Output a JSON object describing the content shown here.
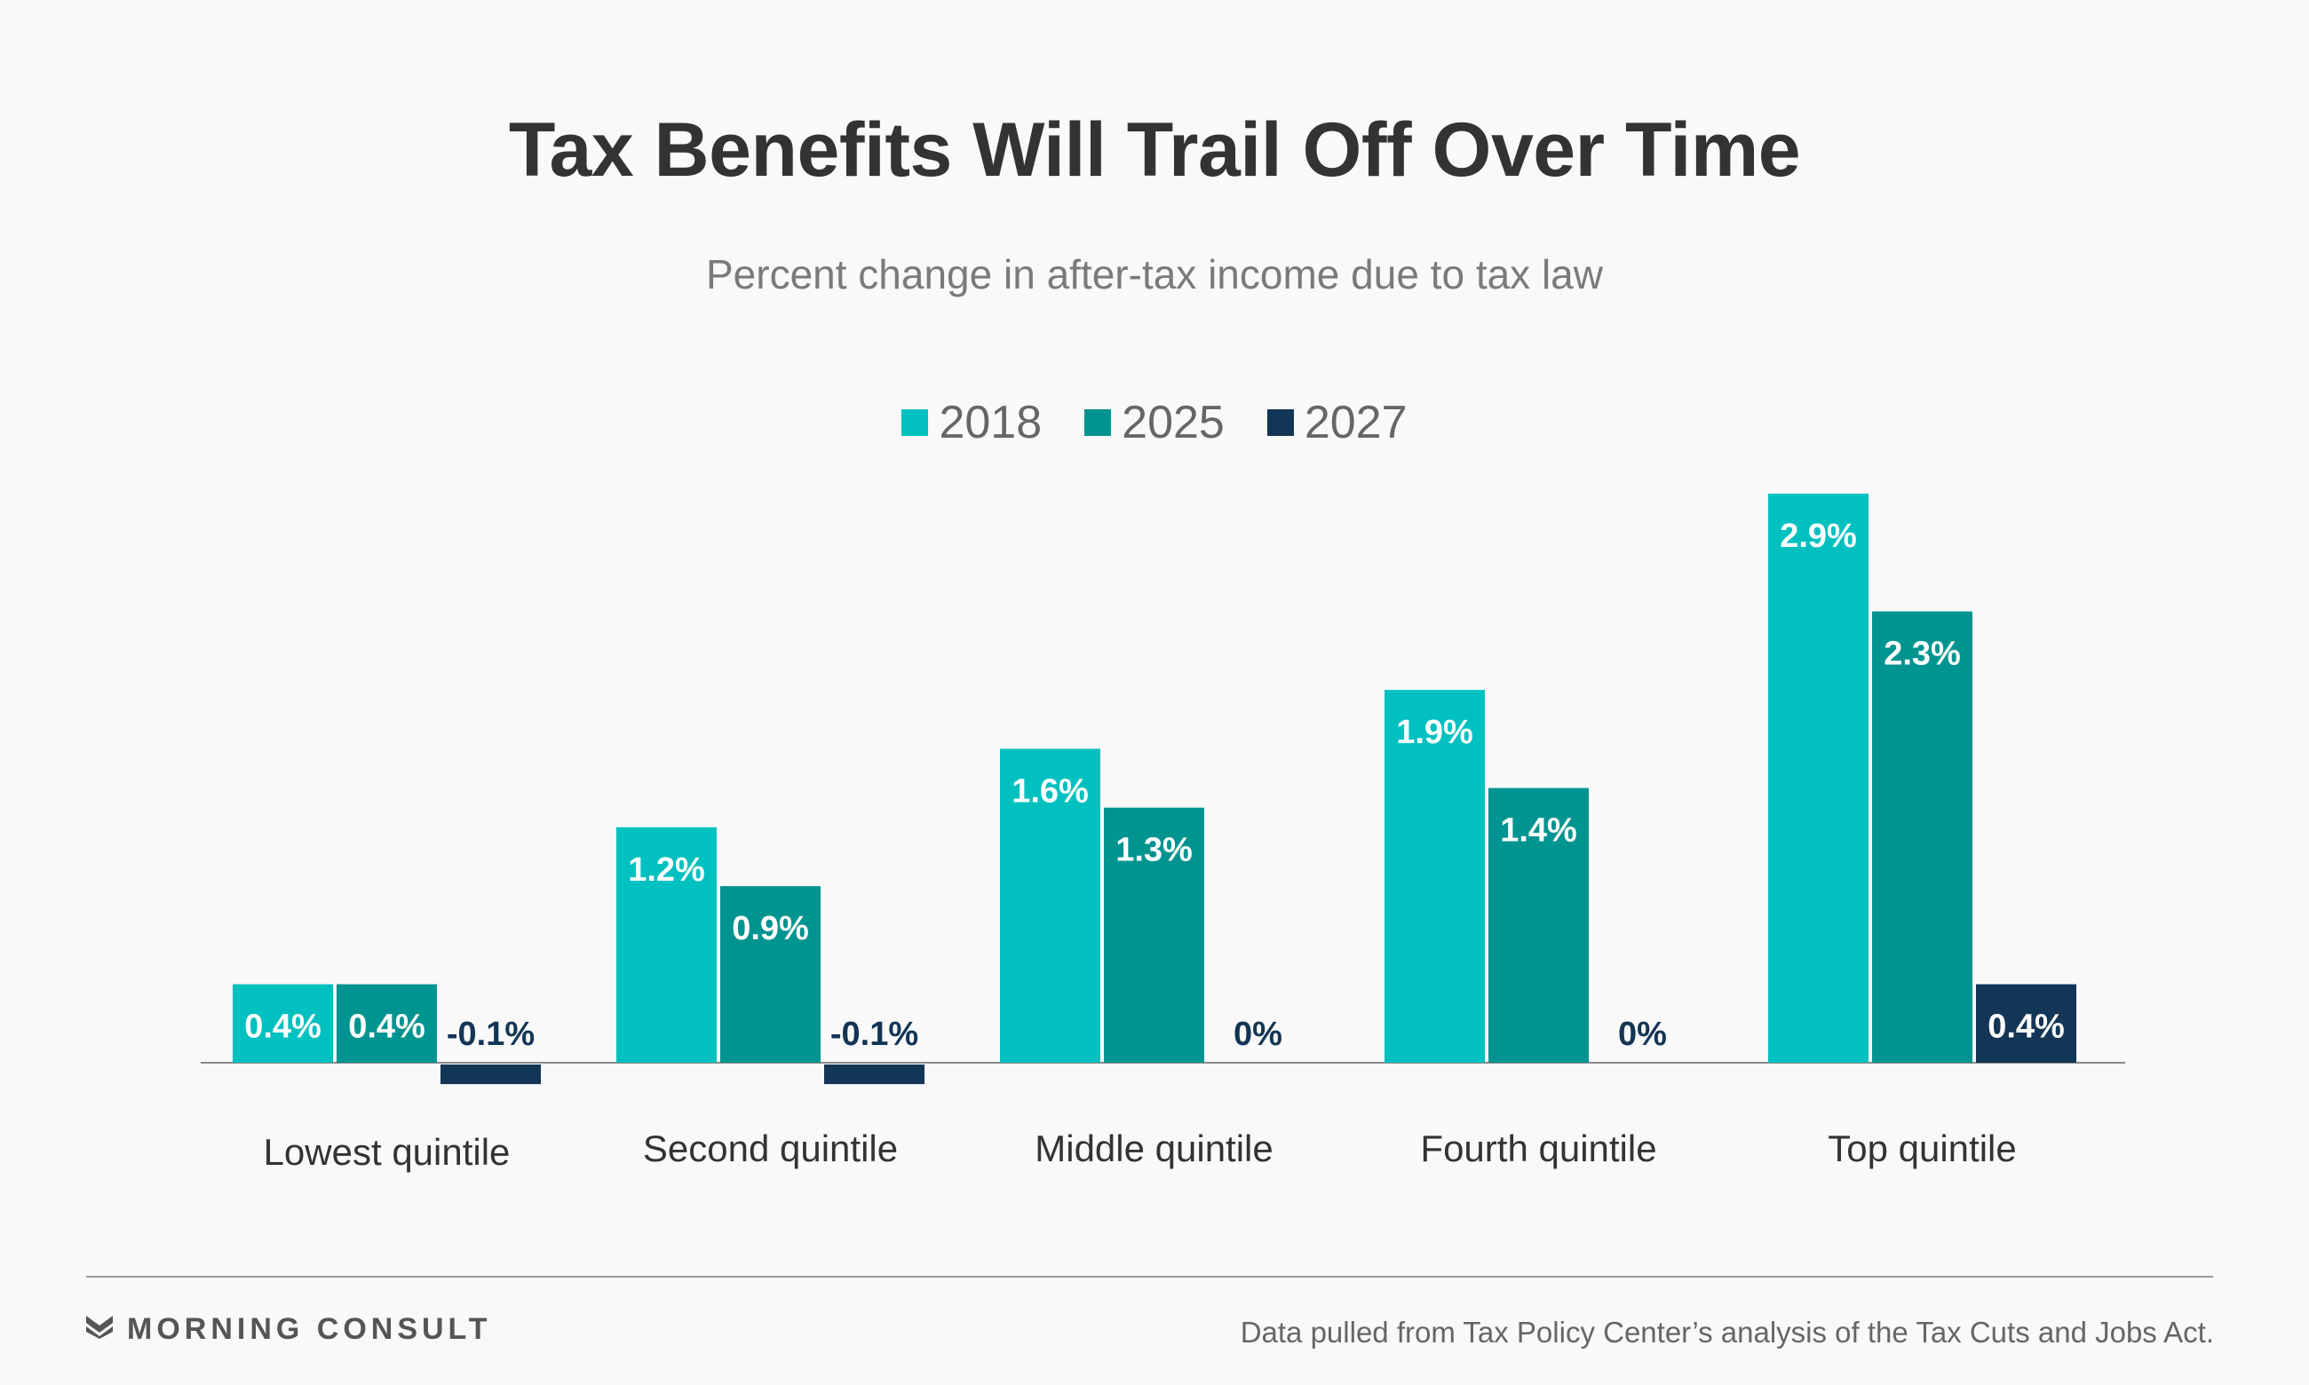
{
  "title": "Tax Benefits Will Trail Off Over Time",
  "subtitle": "Percent change in after-tax income due to tax law",
  "legend": {
    "placement": "top-center",
    "items": [
      {
        "label": "2018",
        "color": "#00c0c0"
      },
      {
        "label": "2025",
        "color": "#009490"
      },
      {
        "label": "2027",
        "color": "#133556"
      }
    ]
  },
  "chart_data": {
    "type": "bar",
    "title": "Tax Benefits Will Trail Off Over Time",
    "subtitle": "Percent change in after-tax income due to tax law",
    "xlabel": "",
    "ylabel": "",
    "grid": false,
    "unit": "%",
    "ylim": [
      -0.1,
      2.9
    ],
    "categories": [
      "Lowest quintile",
      "Second quintile",
      "Middle quintile",
      "Fourth quintile",
      "Top quintile"
    ],
    "series": [
      {
        "name": "2018",
        "color": "#00c0c0",
        "values": [
          0.4,
          1.2,
          1.6,
          1.9,
          2.9
        ],
        "labels": [
          "0.4%",
          "1.2%",
          "1.6%",
          "1.9%",
          "2.9%"
        ]
      },
      {
        "name": "2025",
        "color": "#009490",
        "values": [
          0.4,
          0.9,
          1.3,
          1.4,
          2.3
        ],
        "labels": [
          "0.4%",
          "0.9%",
          "1.3%",
          "1.4%",
          "2.3%"
        ]
      },
      {
        "name": "2027",
        "color": "#133556",
        "values": [
          -0.1,
          -0.1,
          0,
          0,
          0.4
        ],
        "labels": [
          "-0.1%",
          "-0.1%",
          "0%",
          "0%",
          "0.4%"
        ]
      }
    ]
  },
  "footer": {
    "brand": "MORNING CONSULT",
    "source": "Data pulled from Tax Policy Center’s analysis of the Tax Cuts and Jobs Act."
  },
  "icons": {
    "brand_logo": "morning-consult-logo-icon"
  }
}
